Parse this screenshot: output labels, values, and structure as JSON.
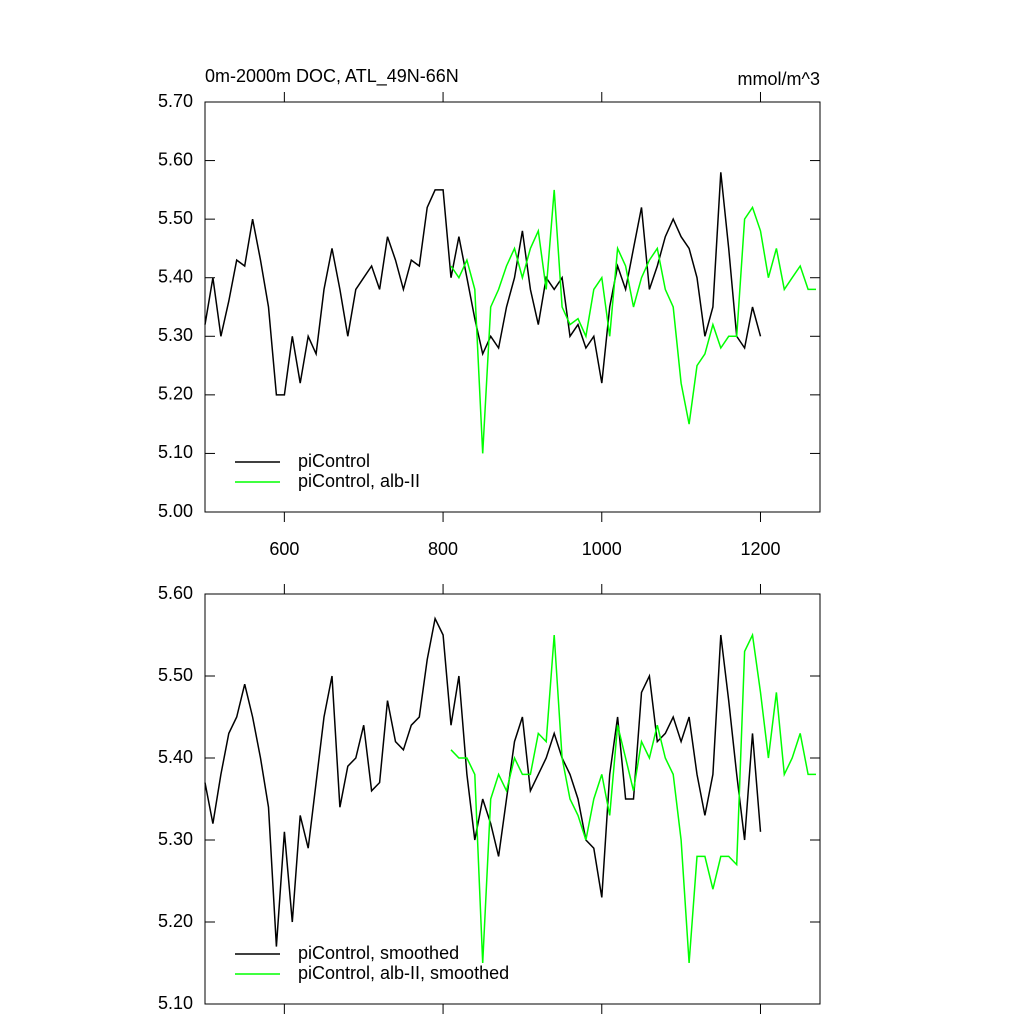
{
  "chart_data": [
    {
      "type": "line",
      "title": "0m-2000m DOC, ATL_49N-66N",
      "subtitle": "mmol/m^3",
      "xlim": [
        500,
        1275
      ],
      "xticks": [
        600,
        800,
        1000,
        1200
      ],
      "ylim": [
        5.0,
        5.7
      ],
      "yticks": [
        {
          "value": 5.0,
          "label": "5.00"
        },
        {
          "value": 5.1,
          "label": "5.10"
        },
        {
          "value": 5.2,
          "label": "5.20"
        },
        {
          "value": 5.3,
          "label": "5.30"
        },
        {
          "value": 5.4,
          "label": "5.40"
        },
        {
          "value": 5.5,
          "label": "5.50"
        },
        {
          "value": 5.6,
          "label": "5.60"
        },
        {
          "value": 5.7,
          "label": "5.70"
        }
      ],
      "legend": "lower left",
      "series": [
        {
          "name": "piControl",
          "color": "#000000",
          "x": [
            500,
            510,
            520,
            530,
            540,
            550,
            560,
            570,
            580,
            590,
            600,
            610,
            620,
            630,
            640,
            650,
            660,
            670,
            680,
            690,
            700,
            710,
            720,
            730,
            740,
            750,
            760,
            770,
            780,
            790,
            800,
            810,
            820,
            830,
            840,
            850,
            860,
            870,
            880,
            890,
            900,
            910,
            920,
            930,
            940,
            950,
            960,
            970,
            980,
            990,
            1000,
            1010,
            1020,
            1030,
            1040,
            1050,
            1060,
            1070,
            1080,
            1090,
            1100,
            1110,
            1120,
            1130,
            1140,
            1150,
            1160,
            1170,
            1180,
            1190,
            1200
          ],
          "values": [
            5.32,
            5.4,
            5.3,
            5.36,
            5.43,
            5.42,
            5.5,
            5.43,
            5.35,
            5.2,
            5.2,
            5.3,
            5.22,
            5.3,
            5.27,
            5.38,
            5.45,
            5.38,
            5.3,
            5.38,
            5.4,
            5.42,
            5.38,
            5.47,
            5.43,
            5.38,
            5.43,
            5.42,
            5.52,
            5.55,
            5.55,
            5.4,
            5.47,
            5.4,
            5.33,
            5.27,
            5.3,
            5.28,
            5.35,
            5.4,
            5.48,
            5.38,
            5.32,
            5.4,
            5.38,
            5.4,
            5.3,
            5.32,
            5.28,
            5.3,
            5.22,
            5.35,
            5.42,
            5.38,
            5.45,
            5.52,
            5.38,
            5.42,
            5.47,
            5.5,
            5.47,
            5.45,
            5.4,
            5.3,
            5.35,
            5.58,
            5.45,
            5.3,
            5.28,
            5.35,
            5.3
          ]
        },
        {
          "name": "piControl, alb-II",
          "color": "#00ff00",
          "x": [
            810,
            820,
            830,
            840,
            850,
            860,
            870,
            880,
            890,
            900,
            910,
            920,
            930,
            940,
            950,
            960,
            970,
            980,
            990,
            1000,
            1010,
            1020,
            1030,
            1040,
            1050,
            1060,
            1070,
            1080,
            1090,
            1100,
            1110,
            1120,
            1130,
            1140,
            1150,
            1160,
            1170,
            1180,
            1190,
            1200,
            1210,
            1220,
            1230,
            1240,
            1250,
            1260,
            1270
          ],
          "values": [
            5.42,
            5.4,
            5.43,
            5.38,
            5.1,
            5.35,
            5.38,
            5.42,
            5.45,
            5.4,
            5.45,
            5.48,
            5.38,
            5.55,
            5.35,
            5.32,
            5.33,
            5.3,
            5.38,
            5.4,
            5.3,
            5.45,
            5.42,
            5.35,
            5.4,
            5.43,
            5.45,
            5.38,
            5.35,
            5.22,
            5.15,
            5.25,
            5.27,
            5.32,
            5.28,
            5.3,
            5.3,
            5.5,
            5.52,
            5.48,
            5.4,
            5.45,
            5.38,
            5.4,
            5.42,
            5.38,
            5.38
          ]
        }
      ]
    },
    {
      "type": "line",
      "xlim": [
        500,
        1275
      ],
      "xticks": [
        600,
        800,
        1000,
        1200
      ],
      "ylim": [
        5.1,
        5.6
      ],
      "yticks": [
        {
          "value": 5.1,
          "label": "5.10"
        },
        {
          "value": 5.2,
          "label": "5.20"
        },
        {
          "value": 5.3,
          "label": "5.30"
        },
        {
          "value": 5.4,
          "label": "5.40"
        },
        {
          "value": 5.5,
          "label": "5.50"
        },
        {
          "value": 5.6,
          "label": "5.60"
        }
      ],
      "legend": "lower left",
      "series": [
        {
          "name": "piControl, smoothed",
          "color": "#000000",
          "x": [
            500,
            510,
            520,
            530,
            540,
            550,
            560,
            570,
            580,
            590,
            600,
            610,
            620,
            630,
            640,
            650,
            660,
            670,
            680,
            690,
            700,
            710,
            720,
            730,
            740,
            750,
            760,
            770,
            780,
            790,
            800,
            810,
            820,
            830,
            840,
            850,
            860,
            870,
            880,
            890,
            900,
            910,
            920,
            930,
            940,
            950,
            960,
            970,
            980,
            990,
            1000,
            1010,
            1020,
            1030,
            1040,
            1050,
            1060,
            1070,
            1080,
            1090,
            1100,
            1110,
            1120,
            1130,
            1140,
            1150,
            1160,
            1170,
            1180,
            1190,
            1200
          ],
          "values": [
            5.37,
            5.32,
            5.38,
            5.43,
            5.45,
            5.49,
            5.45,
            5.4,
            5.34,
            5.17,
            5.31,
            5.2,
            5.33,
            5.29,
            5.37,
            5.45,
            5.5,
            5.34,
            5.39,
            5.4,
            5.44,
            5.36,
            5.37,
            5.47,
            5.42,
            5.41,
            5.44,
            5.45,
            5.52,
            5.57,
            5.55,
            5.44,
            5.5,
            5.38,
            5.3,
            5.35,
            5.32,
            5.28,
            5.35,
            5.42,
            5.45,
            5.36,
            5.38,
            5.4,
            5.43,
            5.4,
            5.38,
            5.35,
            5.3,
            5.29,
            5.23,
            5.38,
            5.45,
            5.35,
            5.35,
            5.48,
            5.5,
            5.42,
            5.43,
            5.45,
            5.42,
            5.45,
            5.38,
            5.33,
            5.38,
            5.55,
            5.47,
            5.38,
            5.3,
            5.43,
            5.31
          ]
        },
        {
          "name": "piControl, alb-II, smoothed",
          "color": "#00ff00",
          "x": [
            810,
            820,
            830,
            840,
            850,
            860,
            870,
            880,
            890,
            900,
            910,
            920,
            930,
            940,
            950,
            960,
            970,
            980,
            990,
            1000,
            1010,
            1020,
            1030,
            1040,
            1050,
            1060,
            1070,
            1080,
            1090,
            1100,
            1110,
            1120,
            1130,
            1140,
            1150,
            1160,
            1170,
            1180,
            1190,
            1200,
            1210,
            1220,
            1230,
            1240,
            1250,
            1260,
            1270
          ],
          "values": [
            5.41,
            5.4,
            5.4,
            5.38,
            5.15,
            5.35,
            5.38,
            5.36,
            5.4,
            5.38,
            5.38,
            5.43,
            5.42,
            5.55,
            5.4,
            5.35,
            5.33,
            5.3,
            5.35,
            5.38,
            5.33,
            5.44,
            5.4,
            5.36,
            5.42,
            5.4,
            5.44,
            5.4,
            5.38,
            5.3,
            5.15,
            5.28,
            5.28,
            5.24,
            5.28,
            5.28,
            5.27,
            5.53,
            5.55,
            5.48,
            5.4,
            5.48,
            5.38,
            5.4,
            5.43,
            5.38,
            5.38
          ]
        }
      ]
    }
  ]
}
